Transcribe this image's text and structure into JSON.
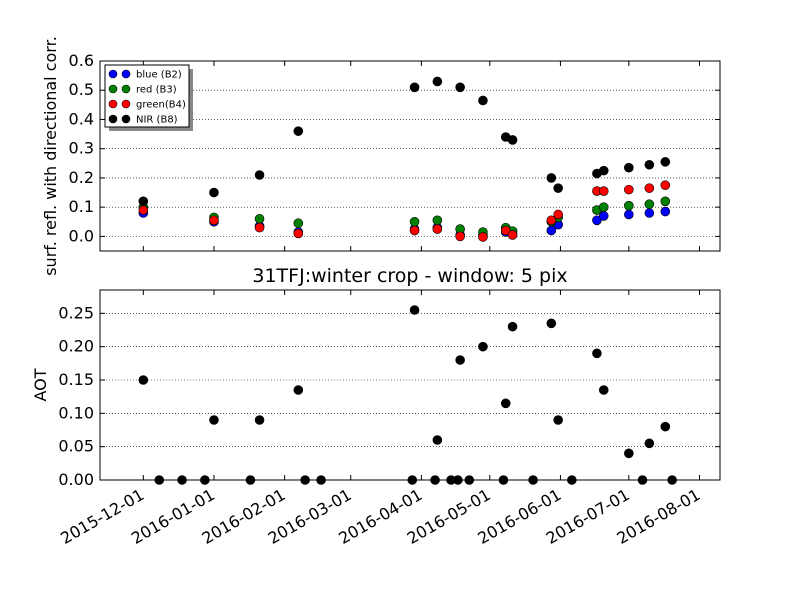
{
  "chart_data": [
    {
      "type": "scatter",
      "title": "",
      "xlabel": "",
      "ylabel": "surf. refl. with directional corr.",
      "ylim": [
        -0.05,
        0.6
      ],
      "yticks": [
        "0.0",
        "0.1",
        "0.2",
        "0.3",
        "0.4",
        "0.5",
        "0.6"
      ],
      "grid": "horizontal dotted",
      "legend_position": "top-left",
      "series": [
        {
          "name": "blue (B2)",
          "color": "#0000ff",
          "points": [
            [
              "2015-12-01",
              0.08
            ],
            [
              "2016-01-01",
              0.05
            ],
            [
              "2016-01-21",
              0.035
            ],
            [
              "2016-02-07",
              0.015
            ],
            [
              "2016-03-29",
              0.025
            ],
            [
              "2016-04-08",
              0.03
            ],
            [
              "2016-04-18",
              0.005
            ],
            [
              "2016-04-28",
              0.005
            ],
            [
              "2016-05-08",
              0.015
            ],
            [
              "2016-05-11",
              0.008
            ],
            [
              "2016-05-28",
              0.02
            ],
            [
              "2016-05-31",
              0.04
            ],
            [
              "2016-06-17",
              0.055
            ],
            [
              "2016-06-20",
              0.07
            ],
            [
              "2016-07-01",
              0.075
            ],
            [
              "2016-07-10",
              0.08
            ],
            [
              "2016-07-17",
              0.085
            ]
          ]
        },
        {
          "name": "red  (B3)",
          "color": "#008000",
          "points": [
            [
              "2015-12-01",
              0.1
            ],
            [
              "2016-01-01",
              0.065
            ],
            [
              "2016-01-21",
              0.06
            ],
            [
              "2016-02-07",
              0.045
            ],
            [
              "2016-03-29",
              0.05
            ],
            [
              "2016-04-08",
              0.055
            ],
            [
              "2016-04-18",
              0.025
            ],
            [
              "2016-04-28",
              0.015
            ],
            [
              "2016-05-08",
              0.03
            ],
            [
              "2016-05-11",
              0.018
            ],
            [
              "2016-05-28",
              0.05
            ],
            [
              "2016-05-31",
              0.065
            ],
            [
              "2016-06-17",
              0.09
            ],
            [
              "2016-06-20",
              0.1
            ],
            [
              "2016-07-01",
              0.105
            ],
            [
              "2016-07-10",
              0.11
            ],
            [
              "2016-07-17",
              0.12
            ]
          ]
        },
        {
          "name": "green(B4)",
          "color": "#ff0000",
          "points": [
            [
              "2015-12-01",
              0.09
            ],
            [
              "2016-01-01",
              0.055
            ],
            [
              "2016-01-21",
              0.03
            ],
            [
              "2016-02-07",
              0.01
            ],
            [
              "2016-03-29",
              0.02
            ],
            [
              "2016-04-08",
              0.025
            ],
            [
              "2016-04-18",
              0.0
            ],
            [
              "2016-04-28",
              -0.002
            ],
            [
              "2016-05-08",
              0.02
            ],
            [
              "2016-05-11",
              0.005
            ],
            [
              "2016-05-28",
              0.055
            ],
            [
              "2016-05-31",
              0.075
            ],
            [
              "2016-06-17",
              0.155
            ],
            [
              "2016-06-20",
              0.155
            ],
            [
              "2016-07-01",
              0.16
            ],
            [
              "2016-07-10",
              0.165
            ],
            [
              "2016-07-17",
              0.175
            ]
          ]
        },
        {
          "name": "NIR  (B8)",
          "color": "#000000",
          "points": [
            [
              "2015-12-01",
              0.12
            ],
            [
              "2016-01-01",
              0.15
            ],
            [
              "2016-01-21",
              0.21
            ],
            [
              "2016-02-07",
              0.36
            ],
            [
              "2016-03-29",
              0.51
            ],
            [
              "2016-04-08",
              0.53
            ],
            [
              "2016-04-18",
              0.51
            ],
            [
              "2016-04-28",
              0.465
            ],
            [
              "2016-05-08",
              0.34
            ],
            [
              "2016-05-11",
              0.33
            ],
            [
              "2016-05-28",
              0.2
            ],
            [
              "2016-05-31",
              0.165
            ],
            [
              "2016-06-17",
              0.215
            ],
            [
              "2016-06-20",
              0.225
            ],
            [
              "2016-07-01",
              0.235
            ],
            [
              "2016-07-10",
              0.245
            ],
            [
              "2016-07-17",
              0.255
            ]
          ]
        }
      ]
    },
    {
      "type": "scatter",
      "title": "31TFJ:winter crop - window: 5 pix",
      "xlabel": "",
      "ylabel": "AOT",
      "ylim": [
        0.0,
        0.285
      ],
      "yticks": [
        "0.00",
        "0.05",
        "0.10",
        "0.15",
        "0.20",
        "0.25"
      ],
      "grid": "horizontal dotted",
      "series": [
        {
          "color": "#000000",
          "points": [
            [
              "2015-12-01",
              0.15
            ],
            [
              "2015-12-08",
              0.0
            ],
            [
              "2015-12-18",
              0.0
            ],
            [
              "2015-12-28",
              0.0
            ],
            [
              "2016-01-01",
              0.09
            ],
            [
              "2016-01-17",
              0.0
            ],
            [
              "2016-01-21",
              0.09
            ],
            [
              "2016-02-07",
              0.135
            ],
            [
              "2016-02-10",
              0.0
            ],
            [
              "2016-02-17",
              0.0
            ],
            [
              "2016-03-28",
              0.0
            ],
            [
              "2016-03-29",
              0.255
            ],
            [
              "2016-04-07",
              0.0
            ],
            [
              "2016-04-08",
              0.06
            ],
            [
              "2016-04-14",
              0.0
            ],
            [
              "2016-04-17",
              0.0
            ],
            [
              "2016-04-18",
              0.18
            ],
            [
              "2016-04-22",
              0.0
            ],
            [
              "2016-04-28",
              0.2
            ],
            [
              "2016-05-07",
              0.0
            ],
            [
              "2016-05-08",
              0.115
            ],
            [
              "2016-05-11",
              0.23
            ],
            [
              "2016-05-20",
              0.0
            ],
            [
              "2016-05-28",
              0.235
            ],
            [
              "2016-05-31",
              0.09
            ],
            [
              "2016-06-06",
              0.0
            ],
            [
              "2016-06-17",
              0.19
            ],
            [
              "2016-06-20",
              0.135
            ],
            [
              "2016-07-01",
              0.04
            ],
            [
              "2016-07-07",
              0.0
            ],
            [
              "2016-07-10",
              0.055
            ],
            [
              "2016-07-17",
              0.08
            ],
            [
              "2016-07-20",
              0.0
            ]
          ]
        }
      ]
    }
  ],
  "shared_x": {
    "type": "date",
    "range": [
      "2015-11-12",
      "2016-08-10"
    ],
    "ticks": [
      "2015-12-01",
      "2016-01-01",
      "2016-02-01",
      "2016-03-01",
      "2016-04-01",
      "2016-05-01",
      "2016-06-01",
      "2016-07-01",
      "2016-08-01"
    ]
  }
}
